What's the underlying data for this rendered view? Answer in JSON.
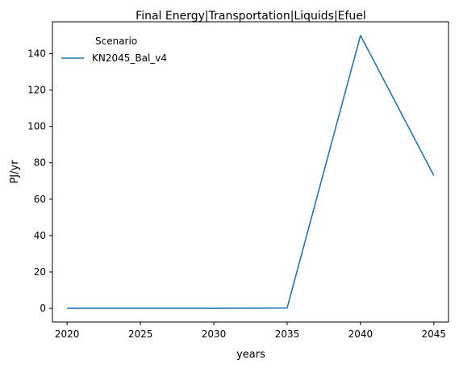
{
  "chart_data": {
    "type": "line",
    "title": "Final Energy|Transportation|Liquids|Efuel",
    "xlabel": "years",
    "ylabel": "PJ/yr",
    "x": [
      2020,
      2025,
      2030,
      2035,
      2040,
      2045
    ],
    "series": [
      {
        "name": "KN2045_Bal_v4",
        "values": [
          0,
          0,
          0,
          0.2,
          150,
          73
        ],
        "color": "#1f77b4"
      }
    ],
    "xticks": [
      2020,
      2025,
      2030,
      2035,
      2040,
      2045
    ],
    "yticks": [
      0,
      20,
      40,
      60,
      80,
      100,
      120,
      140
    ],
    "xlim": [
      2019,
      2046
    ],
    "ylim": [
      -7.5,
      157.5
    ],
    "grid": false,
    "legend": {
      "title": "Scenario",
      "placement": "upper-left"
    }
  }
}
